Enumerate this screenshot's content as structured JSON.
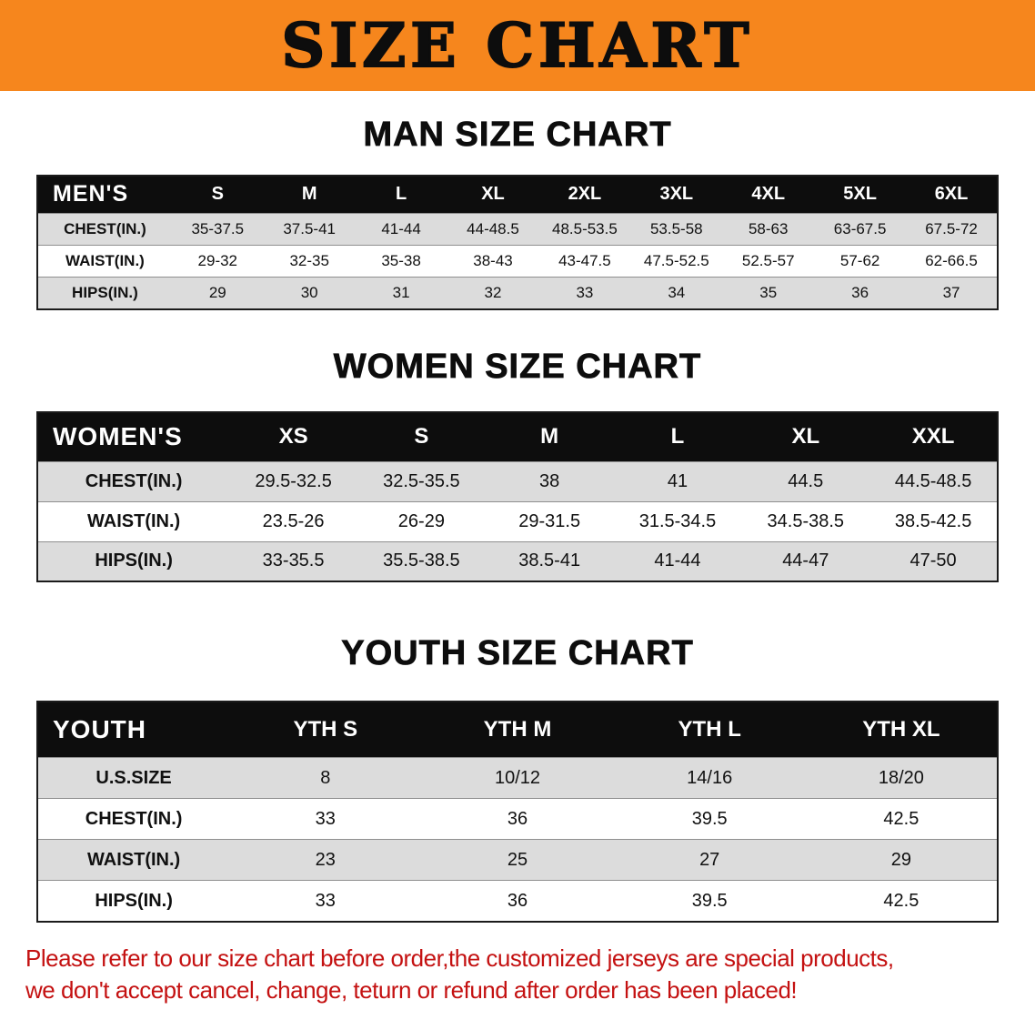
{
  "colors": {
    "banner_bg": "#F6861D",
    "table_header_bg": "#0D0D0D",
    "row_shade": "#DCDCDC",
    "note_color": "#C41111",
    "text_color": "#111111"
  },
  "banner": {
    "title": "SIZE CHART"
  },
  "sections": [
    {
      "id": "men",
      "heading": "MAN SIZE CHART",
      "table": {
        "header_label": "MEN'S",
        "columns": [
          "S",
          "M",
          "L",
          "XL",
          "2XL",
          "3XL",
          "4XL",
          "5XL",
          "6XL"
        ],
        "rows": [
          {
            "label": "CHEST(IN.)",
            "values": [
              "35-37.5",
              "37.5-41",
              "41-44",
              "44-48.5",
              "48.5-53.5",
              "53.5-58",
              "58-63",
              "63-67.5",
              "67.5-72"
            ]
          },
          {
            "label": "WAIST(IN.)",
            "values": [
              "29-32",
              "32-35",
              "35-38",
              "38-43",
              "43-47.5",
              "47.5-52.5",
              "52.5-57",
              "57-62",
              "62-66.5"
            ]
          },
          {
            "label": "HIPS(IN.)",
            "values": [
              "29",
              "30",
              "31",
              "32",
              "33",
              "34",
              "35",
              "36",
              "37"
            ]
          }
        ]
      }
    },
    {
      "id": "women",
      "heading": "WOMEN SIZE CHART",
      "table": {
        "header_label": "WOMEN'S",
        "columns": [
          "XS",
          "S",
          "M",
          "L",
          "XL",
          "XXL"
        ],
        "rows": [
          {
            "label": "CHEST(IN.)",
            "values": [
              "29.5-32.5",
              "32.5-35.5",
              "38",
              "41",
              "44.5",
              "44.5-48.5"
            ]
          },
          {
            "label": "WAIST(IN.)",
            "values": [
              "23.5-26",
              "26-29",
              "29-31.5",
              "31.5-34.5",
              "34.5-38.5",
              "38.5-42.5"
            ]
          },
          {
            "label": "HIPS(IN.)",
            "values": [
              "33-35.5",
              "35.5-38.5",
              "38.5-41",
              "41-44",
              "44-47",
              "47-50"
            ]
          }
        ]
      }
    },
    {
      "id": "youth",
      "heading": "YOUTH SIZE CHART",
      "table": {
        "header_label": "YOUTH",
        "columns": [
          "YTH S",
          "YTH M",
          "YTH L",
          "YTH XL"
        ],
        "rows": [
          {
            "label": "U.S.SIZE",
            "values": [
              "8",
              "10/12",
              "14/16",
              "18/20"
            ]
          },
          {
            "label": "CHEST(IN.)",
            "values": [
              "33",
              "36",
              "39.5",
              "42.5"
            ]
          },
          {
            "label": "WAIST(IN.)",
            "values": [
              "23",
              "25",
              "27",
              "29"
            ]
          },
          {
            "label": "HIPS(IN.)",
            "values": [
              "33",
              "36",
              "39.5",
              "42.5"
            ]
          }
        ]
      }
    }
  ],
  "footer_note": {
    "line1": "Please refer to our size chart before order,the customized jerseys are special products,",
    "line2": "we don't accept cancel, change, teturn or refund after order has been placed!"
  }
}
